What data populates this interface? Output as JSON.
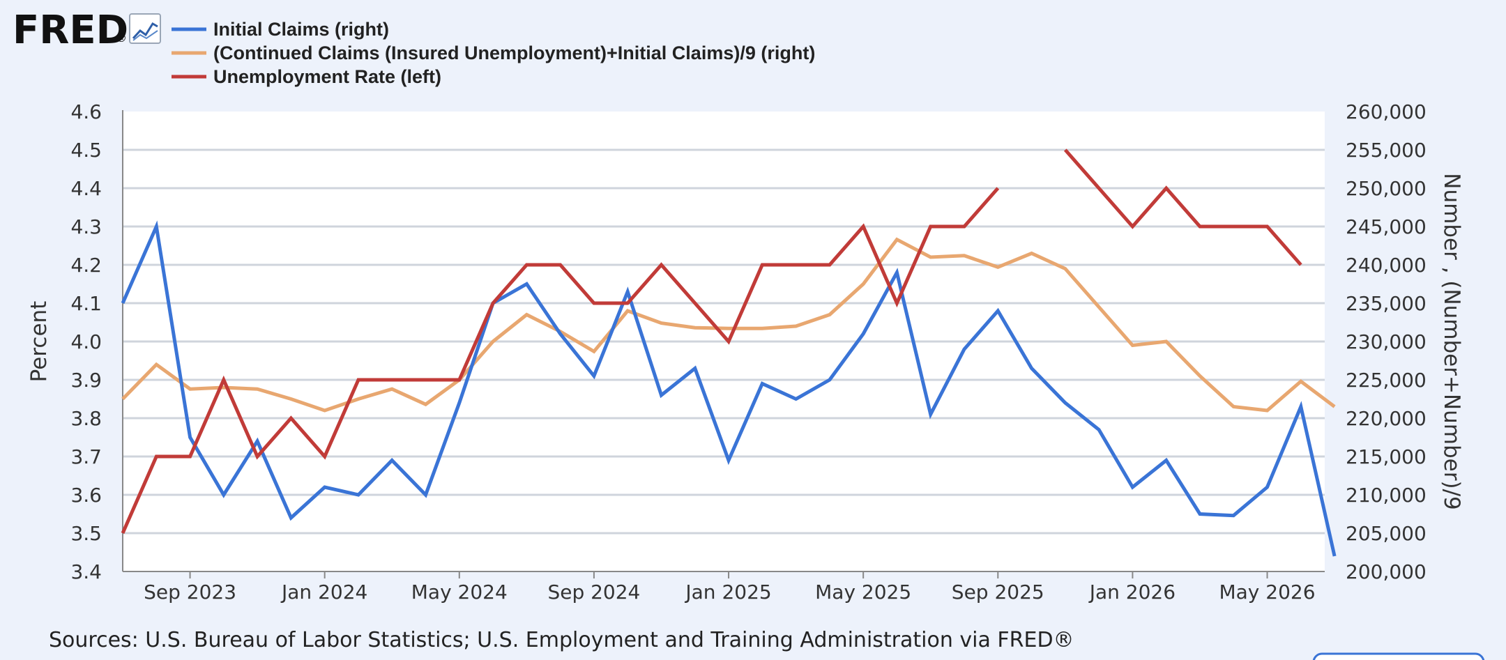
{
  "logo": {
    "text": "FRED",
    "registered": "®"
  },
  "colors": {
    "initial_claims": "#3a74d6",
    "continued_claims": "#e8a770",
    "unemployment_rate": "#c13b38",
    "grid": "#cfd4dc"
  },
  "chart_data": {
    "type": "line",
    "legend": [
      "Initial Claims (right)",
      "(Continued Claims (Insured Unemployment)+Initial Claims)/9 (right)",
      "Unemployment Rate (left)"
    ],
    "x_ticks": [
      "Sep 2023",
      "Jan 2024",
      "May 2024",
      "Sep 2024",
      "Jan 2025",
      "May 2025",
      "Sep 2025",
      "Jan 2026",
      "May 2026"
    ],
    "left_axis": {
      "label": "Percent",
      "range": [
        3.4,
        4.6
      ],
      "ticks": [
        "4.6",
        "4.5",
        "4.4",
        "4.3",
        "4.2",
        "4.1",
        "4.0",
        "3.9",
        "3.8",
        "3.7",
        "3.6",
        "3.5",
        "3.4"
      ]
    },
    "right_axis": {
      "label": "Number , (Number+Number)/9",
      "range": [
        200000,
        260000
      ],
      "ticks": [
        "260,000",
        "255,000",
        "250,000",
        "245,000",
        "240,000",
        "235,000",
        "230,000",
        "225,000",
        "220,000",
        "215,000",
        "210,000",
        "205,000",
        "200,000"
      ]
    },
    "x": [
      "2023-07",
      "2023-08",
      "2023-09",
      "2023-10",
      "2023-11",
      "2023-12",
      "2024-01",
      "2024-02",
      "2024-03",
      "2024-04",
      "2024-05",
      "2024-06",
      "2024-07",
      "2024-08",
      "2024-09",
      "2024-10",
      "2024-11",
      "2024-12",
      "2025-01",
      "2025-02",
      "2025-03",
      "2025-04",
      "2025-05",
      "2025-06",
      "2025-07",
      "2025-08",
      "2025-09",
      "2025-10",
      "2025-11",
      "2025-12",
      "2026-01",
      "2026-02",
      "2026-03",
      "2026-04",
      "2026-05",
      "2026-06",
      "2026-07"
    ],
    "series": [
      {
        "name": "Initial Claims (right)",
        "axis": "right",
        "values": [
          235000,
          245000,
          217500,
          210000,
          217000,
          207000,
          211000,
          210000,
          214500,
          210000,
          222000,
          235000,
          237500,
          231000,
          225500,
          236500,
          223000,
          226500,
          214500,
          224500,
          222500,
          225000,
          231000,
          239000,
          220500,
          229000,
          234000,
          226500,
          222000,
          218500,
          211000,
          214500,
          207500,
          207300,
          211000,
          221500,
          202000
        ]
      },
      {
        "name": "(Continued Claims (Insured Unemployment)+Initial Claims)/9 (right)",
        "axis": "right",
        "values": [
          222500,
          227000,
          223800,
          224000,
          223800,
          222500,
          221000,
          222500,
          223800,
          221800,
          225000,
          230000,
          233500,
          231300,
          228700,
          234000,
          232400,
          231800,
          231700,
          231700,
          232000,
          233500,
          237500,
          243300,
          241000,
          241200,
          239700,
          241500,
          239500,
          234500,
          229500,
          230000,
          225500,
          221500,
          221000,
          224800,
          221500
        ]
      },
      {
        "name": "Unemployment Rate (left)",
        "axis": "left",
        "values": [
          3.5,
          3.7,
          3.7,
          3.9,
          3.7,
          3.8,
          3.7,
          3.9,
          3.9,
          3.9,
          3.9,
          4.1,
          4.2,
          4.2,
          4.1,
          4.1,
          4.2,
          4.1,
          4.0,
          4.2,
          4.2,
          4.2,
          4.3,
          4.1,
          4.3,
          4.3,
          4.4,
          null,
          4.5,
          4.4,
          4.3,
          4.4,
          4.3,
          4.3,
          4.3,
          4.2,
          null
        ]
      }
    ],
    "grid": true,
    "legend_position": "top-left"
  },
  "footer": {
    "sources": "Sources: U.S. Bureau of Labor Statistics; U.S. Employment and Training Administration via FRED®"
  }
}
